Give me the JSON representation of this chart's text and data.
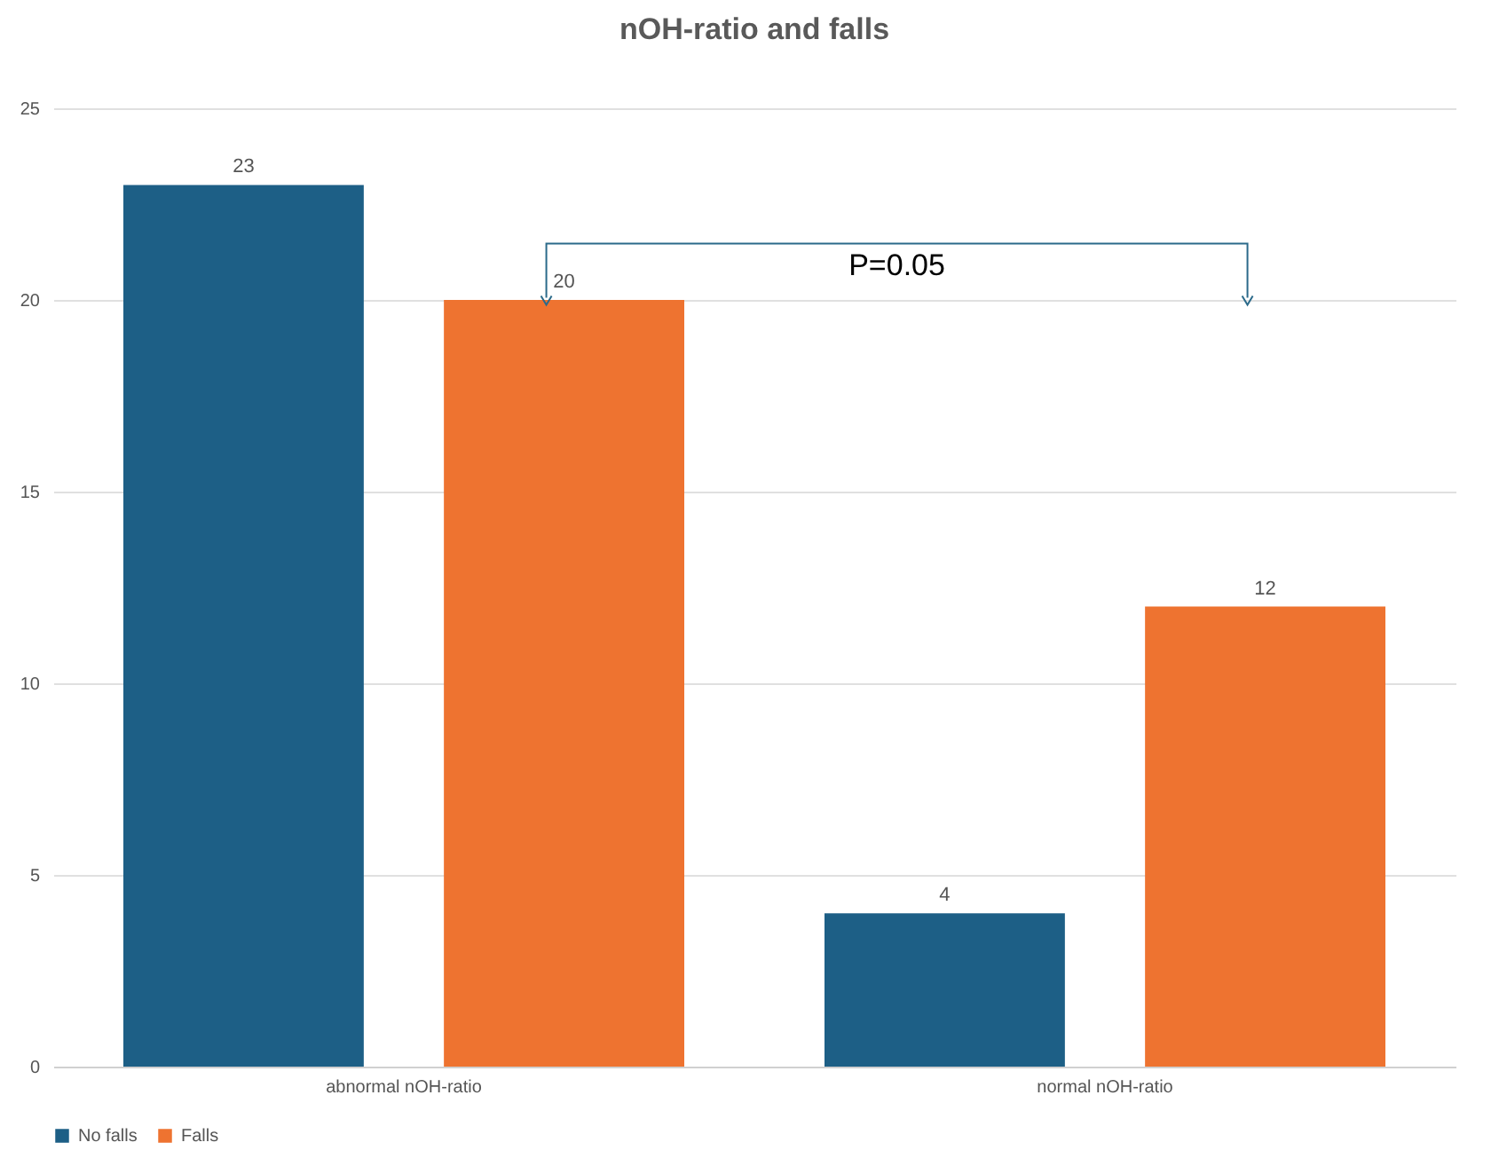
{
  "chart_data": {
    "type": "bar",
    "title": "nOH-ratio and falls",
    "categories": [
      "abnormal nOH-ratio",
      "normal nOH-ratio"
    ],
    "series": [
      {
        "name": "No falls",
        "color": "#1d5f86",
        "values": [
          23,
          4
        ]
      },
      {
        "name": "Falls",
        "color": "#ee7330",
        "values": [
          20,
          12
        ]
      }
    ],
    "ylim": [
      0,
      25
    ],
    "yticks": [
      0,
      5,
      10,
      15,
      20,
      25
    ],
    "grid": "y",
    "legend": "bottom",
    "data_labels": true,
    "annotations": [
      "P=0.05"
    ]
  }
}
